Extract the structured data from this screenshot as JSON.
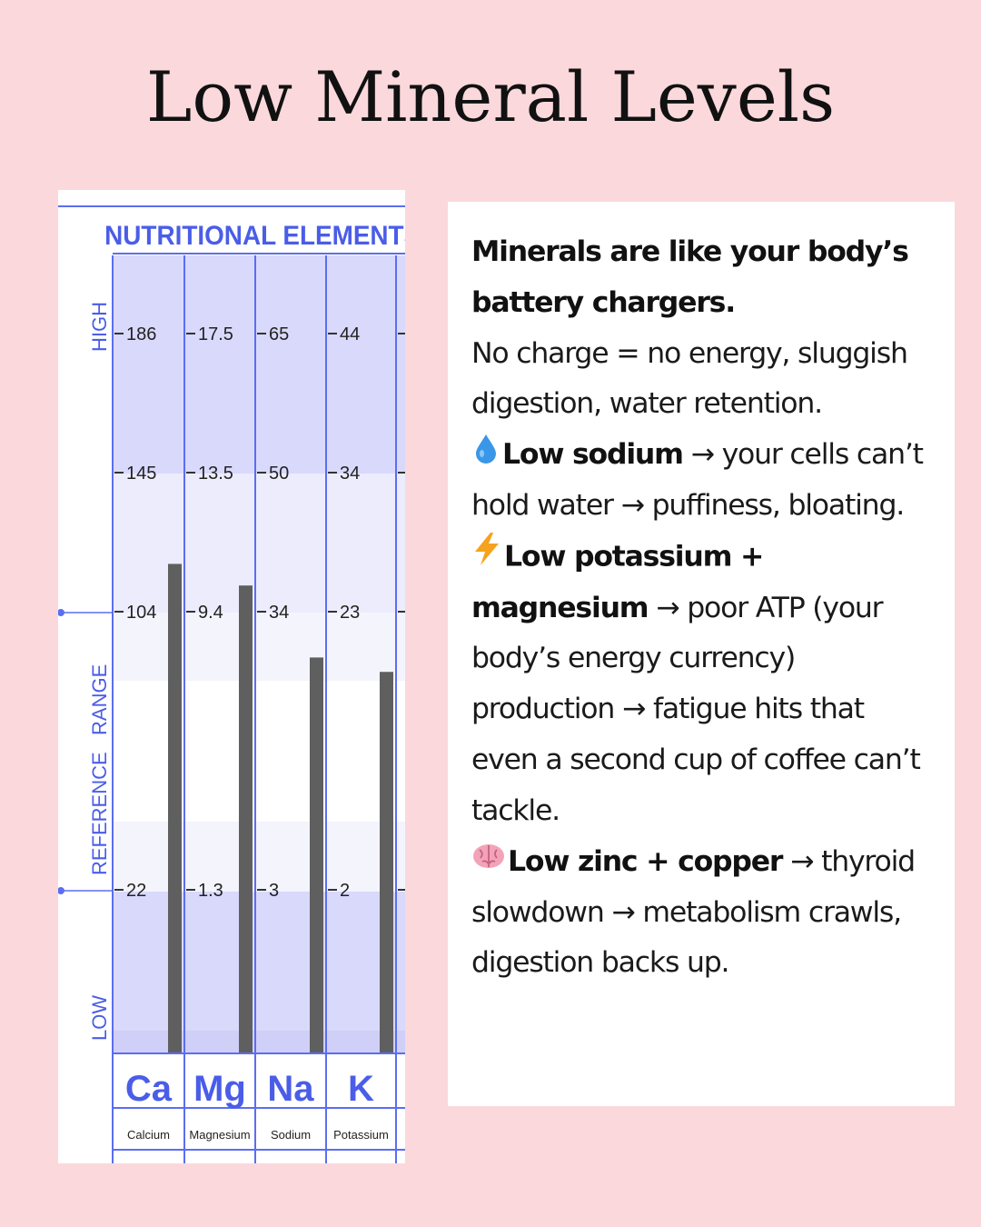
{
  "page": {
    "title": "Low Mineral Levels"
  },
  "chart_data": {
    "type": "bar",
    "title": "NUTRITIONAL  ELEMENTS",
    "ylabel_sections": [
      "HIGH",
      "REFERENCE   RANGE",
      "LOW"
    ],
    "categories": [
      {
        "symbol": "Ca",
        "name": "Calcium",
        "ticks": [
          "186",
          "145",
          "104",
          "22"
        ],
        "value_level": 0.68
      },
      {
        "symbol": "Mg",
        "name": "Magnesium",
        "ticks": [
          "17.5",
          "13.5",
          "9.4",
          "1.3"
        ],
        "value_level": 0.65
      },
      {
        "symbol": "Na",
        "name": "Sodium",
        "ticks": [
          "65",
          "50",
          "34",
          "3"
        ],
        "value_level": 0.55
      },
      {
        "symbol": "K",
        "name": "Potassium",
        "ticks": [
          "44",
          "34",
          "23",
          "2"
        ],
        "value_level": 0.53
      }
    ],
    "colors": {
      "axis": "#5b6ef0",
      "bar": "#5f5f5f",
      "band_dark": "#d9d9fc",
      "band_mid": "#ececfd",
      "band_light": "#f4f4fd",
      "label": "#4a5de8"
    }
  },
  "info": {
    "intro_bold": "Minerals are like your body’s battery chargers.",
    "intro_text": " No charge = no energy, sluggish digestion, water retention.",
    "items": [
      {
        "icon": "droplet-icon",
        "bold": "Low sodium",
        "arrow": " → ",
        "text_a": "your cells can’t hold water",
        "arrow2": " → ",
        "text_b": "puffiness, bloating."
      },
      {
        "icon": "lightning-icon",
        "bold": "Low potassium + magnesium",
        "arrow": " → ",
        "text_a": "poor ATP (your body’s energy currency) production",
        "arrow2": " → ",
        "text_b": "fatigue hits that even a second cup of coffee can’t tackle."
      },
      {
        "icon": "brain-icon",
        "bold": "Low zinc + copper",
        "arrow": " → ",
        "text_a": "thyroid slowdown",
        "arrow2": " → ",
        "text_b": "metabolism crawls, digestion backs up."
      }
    ]
  }
}
